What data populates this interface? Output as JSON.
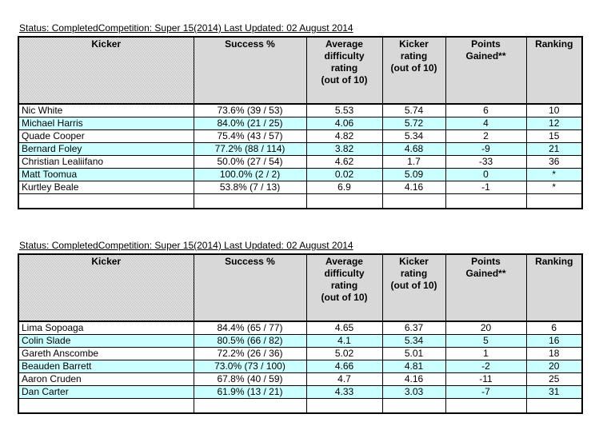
{
  "columns": [
    "Kicker",
    "Success %",
    "Average\ndifficulty\nrating\n(out of 10)",
    "Kicker\nrating\n(out of 10)",
    "Points\nGained**",
    "Ranking"
  ],
  "column_keys": [
    "kicker",
    "success-pct",
    "avg-difficulty-rating",
    "kicker-rating",
    "points-gained",
    "ranking"
  ],
  "cell_keys": [
    "kicker-name",
    "success-pct",
    "avg-difficulty",
    "kicker-rating",
    "points-gained",
    "ranking"
  ],
  "tables": [
    {
      "status": "Status: CompletedCompetition: Super 15(2014) Last Updated: 02 August 2014",
      "rows": [
        [
          "Nic White",
          "73.6% (39 / 53)",
          "5.53",
          "5.74",
          "6",
          "10"
        ],
        [
          "Michael Harris",
          "84.0% (21 / 25)",
          "4.06",
          "5.72",
          "4",
          "12"
        ],
        [
          "Quade Cooper",
          "75.4% (43 / 57)",
          "4.82",
          "5.34",
          "2",
          "15"
        ],
        [
          "Bernard Foley",
          "77.2% (88 / 114)",
          "3.82",
          "4.68",
          "-9",
          "21"
        ],
        [
          "Christian Lealiifano",
          "50.0% (27 / 54)",
          "4.62",
          "1.7",
          "-33",
          "36"
        ],
        [
          "Matt Toomua",
          "100.0% (2 / 2)",
          "0.02",
          "5.09",
          "0",
          "*"
        ],
        [
          "Kurtley Beale",
          "53.8% (7 / 13)",
          "6.9",
          "4.16",
          "-1",
          "*"
        ],
        [
          "",
          "",
          "",
          "",
          "",
          ""
        ]
      ]
    },
    {
      "status": "Status: CompletedCompetition: Super 15(2014) Last Updated: 02 August 2014",
      "rows": [
        [
          "Lima Sopoaga",
          "84.4% (65 / 77)",
          "4.65",
          "6.37",
          "20",
          "6"
        ],
        [
          "Colin Slade",
          "80.5% (66 / 82)",
          "4.1",
          "5.34",
          "5",
          "16"
        ],
        [
          "Gareth Anscombe",
          "72.2% (26 / 36)",
          "5.02",
          "5.01",
          "1",
          "18"
        ],
        [
          "Beauden Barrett",
          "73.0% (73 / 100)",
          "4.66",
          "4.81",
          "-2",
          "20"
        ],
        [
          "Aaron Cruden",
          "67.8% (40 / 59)",
          "4.7",
          "4.16",
          "-11",
          "25"
        ],
        [
          "Dan Carter",
          "61.9% (13 / 21)",
          "4.33",
          "3.03",
          "-7",
          "31"
        ],
        [
          "",
          "",
          "",
          "",
          "",
          ""
        ]
      ]
    }
  ],
  "colors": {
    "alt_row_cyan": "#CCFFFF",
    "header_dither_gray": "#B0B0B0",
    "border_black": "#000000",
    "background_white": "#FFFFFF"
  }
}
